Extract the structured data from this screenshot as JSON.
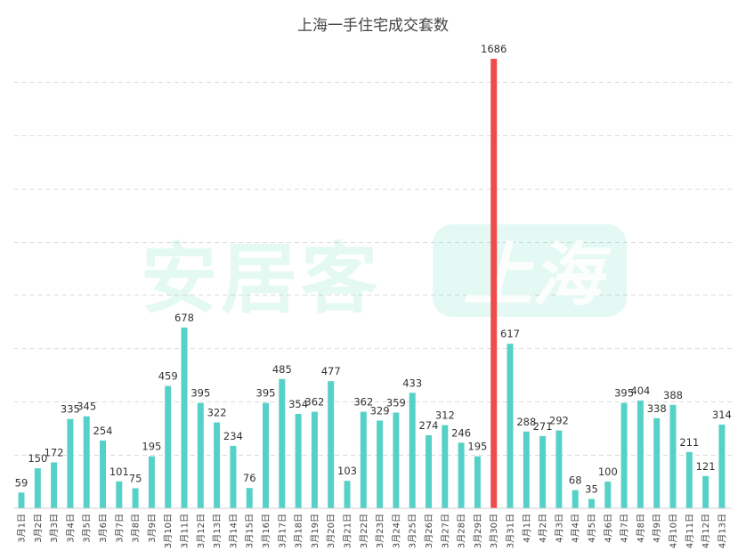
{
  "watermark": {
    "brand": "安居客",
    "city": "上海"
  },
  "chart_data": {
    "type": "bar",
    "title": "上海一手住宅成交套数",
    "xlabel": "",
    "ylabel": "",
    "ylim": [
      0,
      1800
    ],
    "grid": true,
    "legend": "none",
    "bar_color": "#56d1c7",
    "highlight_color": "#f04b4b",
    "highlight_index": 29,
    "categories": [
      "3月1日",
      "3月2日",
      "3月3日",
      "3月4日",
      "3月5日",
      "3月6日",
      "3月7日",
      "3月8日",
      "3月9日",
      "3月10日",
      "3月11日",
      "3月12日",
      "3月13日",
      "3月14日",
      "3月15日",
      "3月16日",
      "3月17日",
      "3月18日",
      "3月19日",
      "3月20日",
      "3月21日",
      "3月22日",
      "3月23日",
      "3月24日",
      "3月25日",
      "3月26日",
      "3月27日",
      "3月28日",
      "3月29日",
      "3月30日",
      "3月31日",
      "4月1日",
      "4月2日",
      "4月3日",
      "4月4日",
      "4月5日",
      "4月6日",
      "4月7日",
      "4月8日",
      "4月9日",
      "4月10日",
      "4月11日",
      "4月12日",
      "4月13日"
    ],
    "values": [
      59,
      150,
      172,
      335,
      345,
      254,
      101,
      75,
      195,
      459,
      678,
      395,
      322,
      234,
      76,
      395,
      485,
      354,
      362,
      477,
      103,
      362,
      329,
      359,
      433,
      274,
      312,
      246,
      195,
      1686,
      617,
      288,
      271,
      292,
      68,
      35,
      100,
      395,
      404,
      338,
      388,
      211,
      121,
      314
    ]
  }
}
